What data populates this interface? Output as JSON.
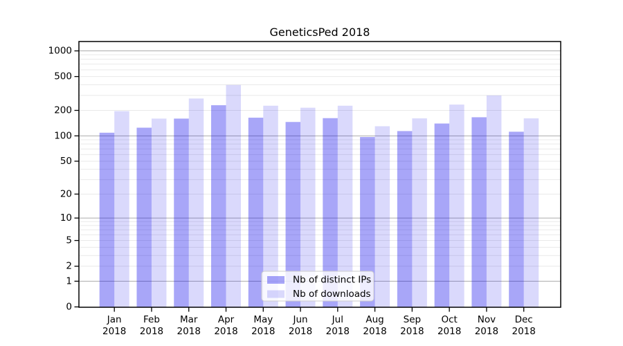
{
  "title": "GeneticsPed 2018",
  "background": "#ffffff",
  "chart_data": {
    "type": "bar",
    "title": "GeneticsPed 2018",
    "x_months": [
      "Jan",
      "Feb",
      "Mar",
      "Apr",
      "May",
      "Jun",
      "Jul",
      "Aug",
      "Sep",
      "Oct",
      "Nov",
      "Dec"
    ],
    "x_year": "2018",
    "categories": [
      "Jan 2018",
      "Feb 2018",
      "Mar 2018",
      "Apr 2018",
      "May 2018",
      "Jun 2018",
      "Jul 2018",
      "Aug 2018",
      "Sep 2018",
      "Oct 2018",
      "Nov 2018",
      "Dec 2018"
    ],
    "series": [
      {
        "name": "Nb of distinct IPs",
        "fill": "rgba(5,0,235,0.35)",
        "solid_color": "#a8a6f8",
        "values": [
          109,
          125,
          160,
          230,
          164,
          146,
          162,
          97,
          114,
          140,
          166,
          112
        ]
      },
      {
        "name": "Nb of downloads",
        "fill": "rgba(5,0,235,0.15)",
        "solid_color": "#d9d8fa",
        "values": [
          196,
          160,
          276,
          398,
          227,
          215,
          227,
          130,
          161,
          234,
          300,
          161
        ]
      }
    ],
    "y_scale": "log1p",
    "y_ticks": [
      0,
      1,
      2,
      5,
      10,
      20,
      50,
      100,
      200,
      500,
      1000
    ],
    "y_major_gridlines": [
      1,
      10,
      100,
      1000
    ],
    "ylim": [
      0,
      1280
    ],
    "grid": true,
    "legend_position": "lower center",
    "colors": {
      "major_grid": "#ababab",
      "minor_grid": "#e9e9e9",
      "axis": "#000000",
      "legend_border": "#cccccc",
      "legend_bg": "rgba(255,255,255,0.8)"
    }
  }
}
